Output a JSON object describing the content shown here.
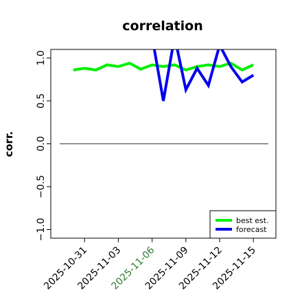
{
  "chart_data": {
    "type": "line",
    "title": "correlation",
    "xlabel": "",
    "ylabel": "corr.",
    "ylim": [
      -1.1,
      1.1
    ],
    "xlim": [
      "2025-10-28",
      "2025-11-17"
    ],
    "yticks": [
      -1.0,
      -0.5,
      0.0,
      0.5,
      1.0
    ],
    "ytick_labels": [
      "−1.0",
      "−0.5",
      "0.0",
      "0.5",
      "1.0"
    ],
    "xticks": [
      "2025-10-31",
      "2025-11-03",
      "2025-11-06",
      "2025-11-09",
      "2025-11-12",
      "2025-11-15"
    ],
    "highlight_xtick": "2025-11-06",
    "highlight_color": "#2e7d32",
    "reference_line_y": 0,
    "grid": false,
    "legend": {
      "position": "lower-right",
      "entries": [
        "best est.",
        "forecast"
      ]
    },
    "series": [
      {
        "name": "best est.",
        "color": "#00ee00",
        "x": [
          "2025-10-30",
          "2025-10-31",
          "2025-11-01",
          "2025-11-02",
          "2025-11-03",
          "2025-11-04",
          "2025-11-05",
          "2025-11-06",
          "2025-11-07",
          "2025-11-08",
          "2025-11-09",
          "2025-11-10",
          "2025-11-11",
          "2025-11-12",
          "2025-11-13",
          "2025-11-14",
          "2025-11-15"
        ],
        "y": [
          0.86,
          0.88,
          0.86,
          0.92,
          0.9,
          0.94,
          0.87,
          0.92,
          0.9,
          0.92,
          0.86,
          0.9,
          0.92,
          0.9,
          0.94,
          0.86,
          0.92
        ]
      },
      {
        "name": "forecast",
        "color": "#0000ee",
        "x": [
          "2025-11-06",
          "2025-11-07",
          "2025-11-08",
          "2025-11-09",
          "2025-11-10",
          "2025-11-11",
          "2025-11-12",
          "2025-11-13",
          "2025-11-14",
          "2025-11-15"
        ],
        "y": [
          1.25,
          0.5,
          1.25,
          0.63,
          0.88,
          0.68,
          1.15,
          0.9,
          0.72,
          0.8
        ]
      }
    ]
  }
}
